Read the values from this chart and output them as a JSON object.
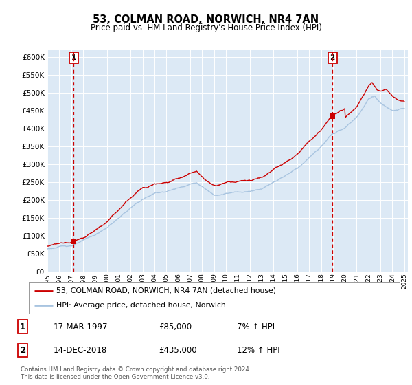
{
  "title": "53, COLMAN ROAD, NORWICH, NR4 7AN",
  "subtitle": "Price paid vs. HM Land Registry's House Price Index (HPI)",
  "plot_bg_color": "#dce9f5",
  "ylim": [
    0,
    620000
  ],
  "yticks": [
    0,
    50000,
    100000,
    150000,
    200000,
    250000,
    300000,
    350000,
    400000,
    450000,
    500000,
    550000,
    600000
  ],
  "hpi_line_color": "#a8c4e0",
  "price_line_color": "#cc0000",
  "vline_color": "#cc0000",
  "annotation_box_color": "#cc0000",
  "legend_line1": "53, COLMAN ROAD, NORWICH, NR4 7AN (detached house)",
  "legend_line2": "HPI: Average price, detached house, Norwich",
  "note1_num": "1",
  "note1_date": "17-MAR-1997",
  "note1_price": "£85,000",
  "note1_hpi": "7% ↑ HPI",
  "note2_num": "2",
  "note2_date": "14-DEC-2018",
  "note2_price": "£435,000",
  "note2_hpi": "12% ↑ HPI",
  "footer": "Contains HM Land Registry data © Crown copyright and database right 2024.\nThis data is licensed under the Open Government Licence v3.0.",
  "purchase1_year": 1997.21,
  "purchase1_price": 85000,
  "purchase2_year": 2018.96,
  "purchase2_price": 435000
}
